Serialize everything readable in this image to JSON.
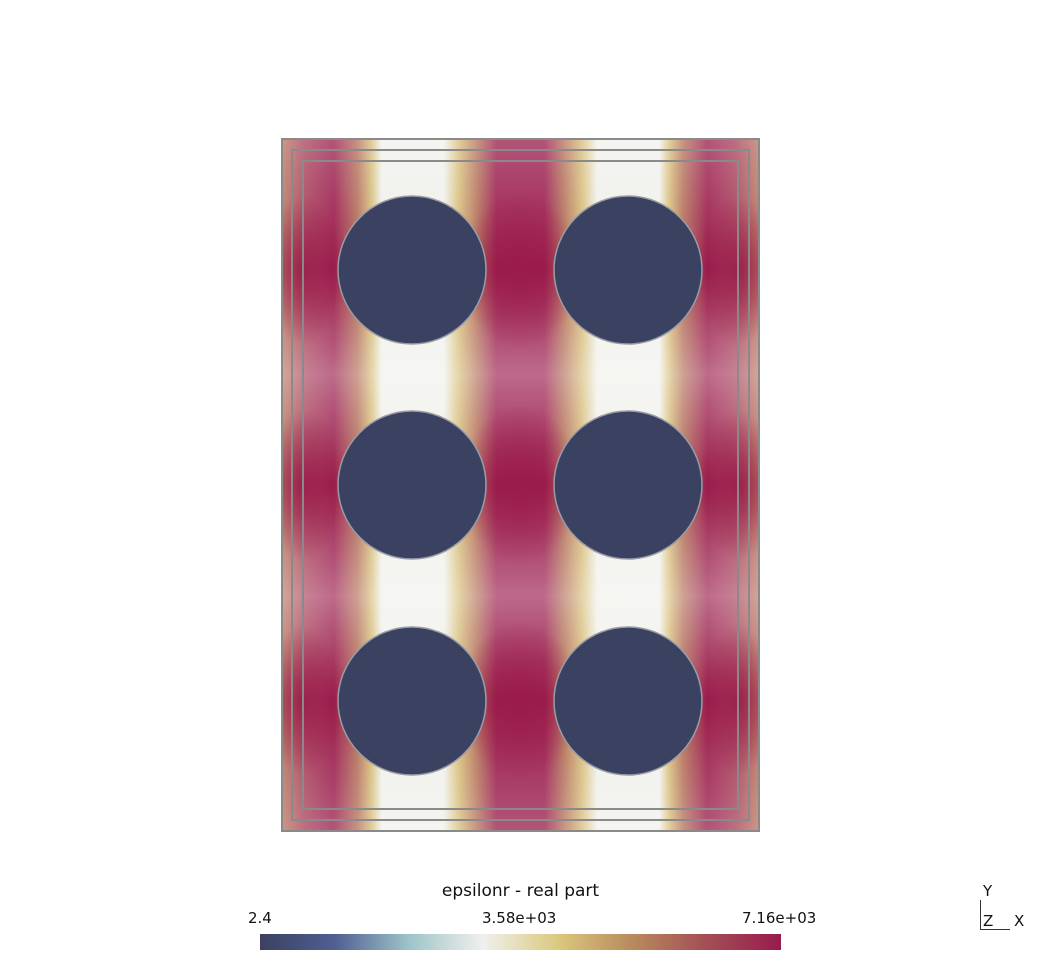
{
  "plot": {
    "field_name": "epsilonr - real part",
    "colorbar": {
      "min_label": "2.4",
      "mid_label": "3.58e+03",
      "max_label": "7.16e+03",
      "min_value": 2.4,
      "max_value": 7160,
      "colormap_stops": [
        "#3b4160",
        "#4f5f92",
        "#9ec4c8",
        "#f0f0ec",
        "#dcc87e",
        "#b88a5e",
        "#a34e56",
        "#9a1b4c"
      ]
    },
    "axes_triad": {
      "y": "Y",
      "z": "Z",
      "x": "X"
    },
    "inclusions": {
      "rows": 3,
      "columns": 2,
      "fill_color": "#3b4160"
    },
    "background_field": {
      "high_color": "#9a1b4c",
      "mid_color": "#c89a62",
      "low_color": "#f0f0ec"
    },
    "frame_color": "#8a8a8a"
  }
}
